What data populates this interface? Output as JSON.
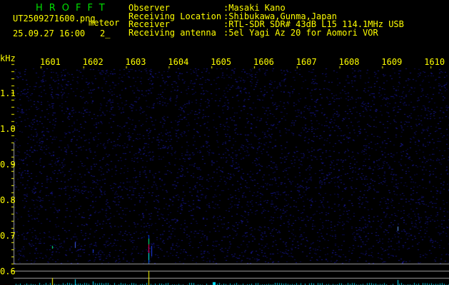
{
  "header": {
    "title": "HROFFT",
    "filename": "UT2509271600.png",
    "mode": "meteor",
    "datetime": "25.09.27 16:00",
    "count": "2_",
    "info": [
      {
        "label": "Observer",
        "value": ":Masaki Kano"
      },
      {
        "label": "Receiving Location",
        "value": ":Shibukawa,Gunma,Japan"
      },
      {
        "label": "Receiver",
        "value": ":RTL-SDR SDR# 43dB L15 114.1MHz USB"
      },
      {
        "label": "Receiving antenna",
        "value": ":5el Yagi Az 20 for Aomori VOR"
      }
    ]
  },
  "axis": {
    "y_unit": "kHz",
    "x_ticks": [
      "1601",
      "1602",
      "1603",
      "1604",
      "1605",
      "1606",
      "1607",
      "1608",
      "1609",
      "1610"
    ],
    "y_ticks": [
      "1.1",
      "1.0",
      "0.9",
      "0.8",
      "0.7",
      "0.6"
    ]
  },
  "colors": {
    "text": "#ffff00",
    "title": "#00e000",
    "grid": "#a0a0a0",
    "noise": "#101060"
  }
}
